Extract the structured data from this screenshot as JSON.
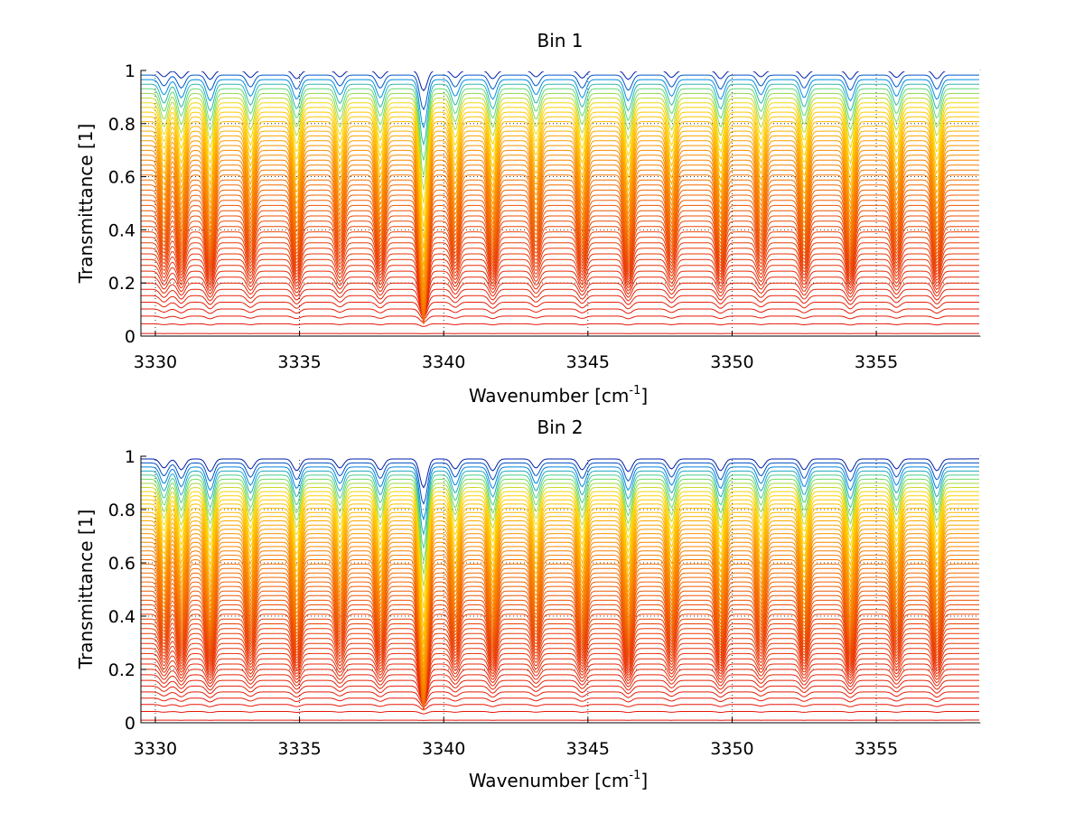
{
  "chart_data": [
    {
      "type": "line",
      "title": "Bin 1",
      "xlabel": "Wavenumber [cm",
      "xlabel_sup": "-1",
      "xlabel_end": "]",
      "ylabel": "Transmittance [1]",
      "xlim": [
        3329.5,
        3358.6
      ],
      "ylim": [
        0,
        1
      ],
      "xticks": [
        "3330",
        "3335",
        "3340",
        "3345",
        "3350",
        "3355"
      ],
      "yticks": [
        "0",
        "0.2",
        "0.4",
        "0.6",
        "0.8",
        "1"
      ],
      "grid": "dotted",
      "colormap": "jet (red to orange to yellow to blue)",
      "series_count": 50,
      "baseline_transmittance_range": [
        0.01,
        1.0
      ],
      "absorption_lines_x": [
        3330.3,
        3330.9,
        3331.9,
        3333.3,
        3334.9,
        3336.4,
        3337.8,
        3339.3,
        3340.4,
        3341.7,
        3343.2,
        3344.8,
        3346.4,
        3347.9,
        3349.6,
        3351.0,
        3352.5,
        3354.1,
        3355.7,
        3357.1
      ],
      "strong_line_x": 3339.3
    },
    {
      "type": "line",
      "title": "Bin 2",
      "xlabel": "Wavenumber [cm",
      "xlabel_sup": "-1",
      "xlabel_end": "]",
      "ylabel": "Transmittance [1]",
      "xlim": [
        3329.5,
        3358.6
      ],
      "ylim": [
        0,
        1
      ],
      "xticks": [
        "3330",
        "3335",
        "3340",
        "3345",
        "3350",
        "3355"
      ],
      "yticks": [
        "0",
        "0.2",
        "0.4",
        "0.6",
        "0.8",
        "1"
      ],
      "grid": "dotted",
      "colormap": "jet (red to orange to yellow to green to blue)",
      "series_count": 56,
      "baseline_transmittance_range": [
        0.01,
        0.99
      ],
      "absorption_lines_x": [
        3330.3,
        3330.9,
        3331.9,
        3333.3,
        3334.9,
        3336.4,
        3337.8,
        3339.3,
        3340.4,
        3341.7,
        3343.2,
        3344.8,
        3346.4,
        3347.9,
        3349.6,
        3351.0,
        3352.5,
        3354.1,
        3355.7,
        3357.1
      ],
      "strong_line_x": 3339.3
    }
  ]
}
